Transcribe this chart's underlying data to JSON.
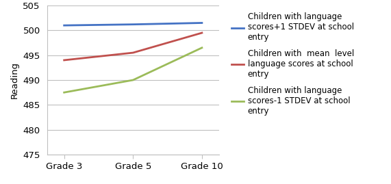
{
  "x_labels": [
    "Grade 3",
    "Grade 5",
    "Grade 10"
  ],
  "x_positions": [
    0,
    1,
    2
  ],
  "series": [
    {
      "label": "Children with language\nscores+1 STDEV at school\nentry",
      "values": [
        501.0,
        501.2,
        501.5
      ],
      "color": "#4472C4",
      "linewidth": 2.0
    },
    {
      "label": "Children with  mean  level\nlanguage scores at school\nentry",
      "values": [
        494.0,
        495.5,
        499.5
      ],
      "color": "#C0504D",
      "linewidth": 2.0
    },
    {
      "label": "Children with language\nscores-1 STDEV at school\nentry",
      "values": [
        487.5,
        490.0,
        496.5
      ],
      "color": "#9BBB59",
      "linewidth": 2.0
    }
  ],
  "ylabel": "Reading",
  "ylim": [
    475,
    505
  ],
  "yticks": [
    475,
    480,
    485,
    490,
    495,
    500,
    505
  ],
  "grid_color": "#BFBFBF",
  "background_color": "#FFFFFF",
  "legend_fontsize": 8.5,
  "axis_fontsize": 9.5,
  "tick_fontsize": 9.5
}
